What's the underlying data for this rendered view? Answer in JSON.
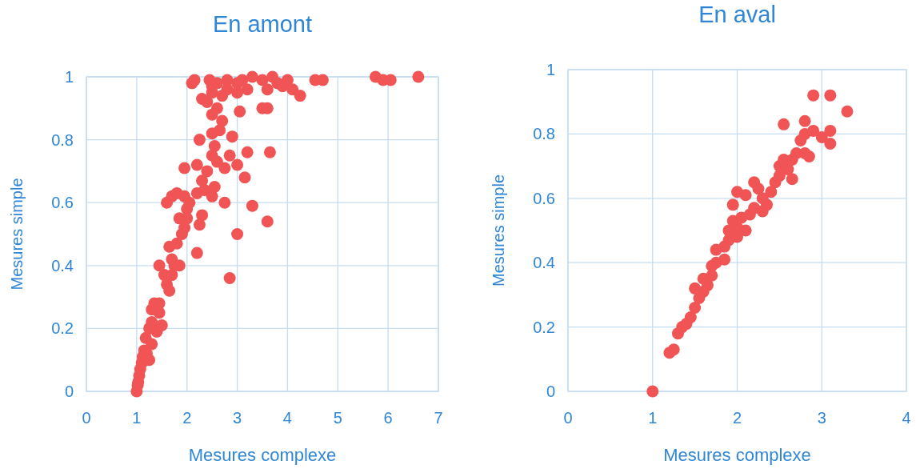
{
  "chart_data": [
    {
      "type": "scatter",
      "title": "En amont",
      "xlabel": "Mesures complexe",
      "ylabel": "Mesures simple",
      "xlim": [
        0,
        7
      ],
      "xticks": [
        0,
        1,
        2,
        3,
        4,
        5,
        6,
        7
      ],
      "ylim": [
        0,
        1
      ],
      "yticks": [
        0,
        0.2,
        0.4,
        0.6,
        0.8,
        1
      ],
      "grid": true,
      "marker": "circle",
      "series": [
        {
          "color": "#f05454",
          "x": [
            1,
            1.02,
            1.03,
            1.05,
            1.07,
            1.1,
            1.12,
            1.15,
            1.2,
            1.25,
            1.18,
            1.3,
            1.25,
            1.3,
            1.3,
            1.35,
            1.45,
            1.5,
            1.45,
            1.4,
            1.55,
            1.6,
            1.65,
            1.45,
            1.7,
            1.75,
            1.85,
            1.7,
            1.8,
            1.65,
            1.9,
            1.95,
            1.85,
            2.0,
            1.6,
            1.7,
            1.8,
            1.95,
            2.05,
            2.2,
            2.35,
            2.0,
            2.25,
            2.2,
            2.5,
            2.55,
            2.3,
            2.4,
            2.2,
            1.95,
            2.6,
            2.55,
            2.5,
            2.65,
            2.25,
            2.7,
            2.5,
            2.6,
            2.4,
            2.3,
            2.5,
            2.7,
            2.8,
            3.0,
            2.6,
            2.5,
            2.1,
            2.15,
            2.45,
            2.8,
            3.1,
            3.3,
            3.5,
            3.7,
            3.8,
            3.6,
            3.9,
            4.0,
            4.1,
            4.25,
            3.5,
            3.6,
            3.2,
            3.0,
            4.55,
            4.7,
            5.75,
            5.9,
            6.05,
            6.6,
            3.0,
            2.85,
            3.2,
            3.15,
            2.75,
            2.9,
            3.05,
            2.75,
            3.3,
            3.6,
            3.0,
            3.65,
            2.85,
            2.3,
            2.5
          ],
          "values": [
            0,
            0.02,
            0.03,
            0.05,
            0.07,
            0.09,
            0.11,
            0.13,
            0.12,
            0.1,
            0.17,
            0.15,
            0.2,
            0.22,
            0.26,
            0.28,
            0.25,
            0.21,
            0.28,
            0.19,
            0.37,
            0.34,
            0.32,
            0.4,
            0.37,
            0.4,
            0.4,
            0.42,
            0.47,
            0.46,
            0.5,
            0.52,
            0.55,
            0.58,
            0.6,
            0.62,
            0.63,
            0.62,
            0.6,
            0.63,
            0.64,
            0.55,
            0.53,
            0.44,
            0.62,
            0.65,
            0.67,
            0.7,
            0.72,
            0.71,
            0.73,
            0.78,
            0.82,
            0.83,
            0.8,
            0.86,
            0.88,
            0.9,
            0.92,
            0.93,
            0.95,
            0.94,
            0.96,
            0.98,
            0.98,
            0.97,
            0.98,
            0.99,
            0.99,
            0.99,
            0.99,
            1.0,
            0.99,
            1.0,
            0.98,
            0.96,
            0.97,
            0.99,
            0.96,
            0.94,
            0.9,
            0.9,
            0.96,
            0.95,
            0.99,
            0.99,
            1.0,
            0.99,
            0.99,
            1.0,
            0.72,
            0.75,
            0.76,
            0.68,
            0.71,
            0.81,
            0.89,
            0.6,
            0.59,
            0.54,
            0.5,
            0.76,
            0.36,
            0.56,
            0.75
          ]
        }
      ]
    },
    {
      "type": "scatter",
      "title": "En aval",
      "xlabel": "Mesures complexe",
      "ylabel": "Mesures simple",
      "xlim": [
        0,
        4
      ],
      "xticks": [
        0,
        1,
        2,
        3,
        4
      ],
      "ylim": [
        0,
        1
      ],
      "yticks": [
        0,
        0.2,
        0.4,
        0.6,
        0.8,
        1
      ],
      "grid": true,
      "marker": "circle",
      "series": [
        {
          "color": "#f05454",
          "x": [
            1,
            1.2,
            1.25,
            1.3,
            1.35,
            1.4,
            1.45,
            1.5,
            1.55,
            1.5,
            1.6,
            1.6,
            1.7,
            1.7,
            1.75,
            1.75,
            1.85,
            1.9,
            1.85,
            1.9,
            2.0,
            1.95,
            2.05,
            2.0,
            2.1,
            2.15,
            2.2,
            2.0,
            2.1,
            2.25,
            2.2,
            1.95,
            2.3,
            2.35,
            2.4,
            2.45,
            2.5,
            2.5,
            2.6,
            2.55,
            2.65,
            2.7,
            2.8,
            2.85,
            2.75,
            2.8,
            2.55,
            2.8,
            2.9,
            3.0,
            3.1,
            3.1,
            2.9,
            3.1,
            3.3,
            2.65,
            2.3,
            1.65
          ],
          "values": [
            0,
            0.12,
            0.13,
            0.18,
            0.2,
            0.21,
            0.23,
            0.26,
            0.29,
            0.32,
            0.31,
            0.35,
            0.36,
            0.39,
            0.4,
            0.44,
            0.45,
            0.47,
            0.41,
            0.5,
            0.51,
            0.53,
            0.54,
            0.48,
            0.5,
            0.55,
            0.57,
            0.62,
            0.61,
            0.63,
            0.65,
            0.58,
            0.6,
            0.58,
            0.62,
            0.65,
            0.67,
            0.7,
            0.69,
            0.72,
            0.72,
            0.74,
            0.74,
            0.73,
            0.78,
            0.8,
            0.83,
            0.84,
            0.81,
            0.79,
            0.81,
            0.77,
            0.92,
            0.92,
            0.87,
            0.66,
            0.56,
            0.33
          ]
        }
      ]
    }
  ]
}
